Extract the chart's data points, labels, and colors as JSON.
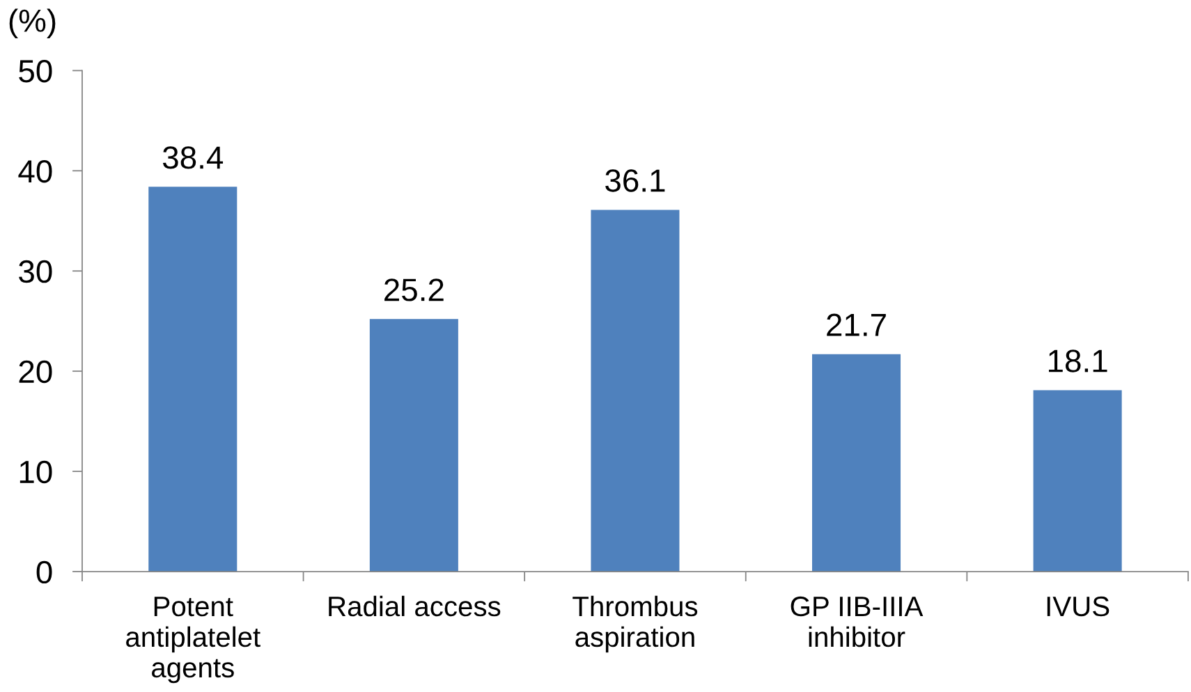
{
  "chart_data": {
    "type": "bar",
    "ylabel": "(%)",
    "categories": [
      "Potent\nantiplatelet\nagents",
      "Radial access",
      "Thrombus\naspiration",
      "GP IIB-IIIA\ninhibitor",
      "IVUS"
    ],
    "values": [
      38.4,
      25.2,
      36.1,
      21.7,
      18.1
    ],
    "color": "#4f81bd",
    "ylim": [
      0,
      50
    ],
    "yticks": [
      0,
      10,
      20,
      30,
      40,
      50
    ],
    "grid": false,
    "data_labels": true
  }
}
